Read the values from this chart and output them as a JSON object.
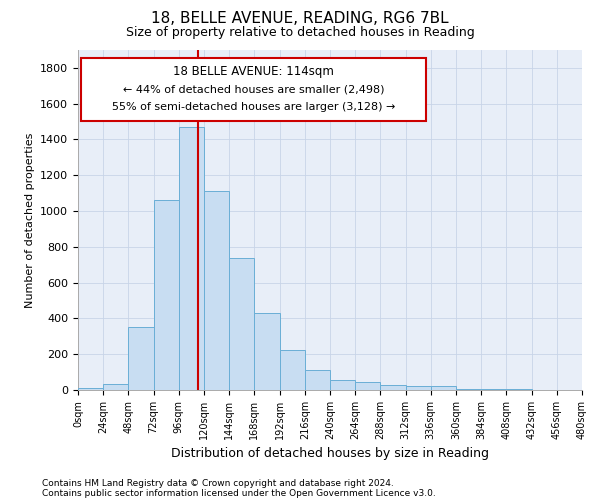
{
  "title1": "18, BELLE AVENUE, READING, RG6 7BL",
  "title2": "Size of property relative to detached houses in Reading",
  "xlabel": "Distribution of detached houses by size in Reading",
  "ylabel": "Number of detached properties",
  "footnote1": "Contains HM Land Registry data © Crown copyright and database right 2024.",
  "footnote2": "Contains public sector information licensed under the Open Government Licence v3.0.",
  "bin_edges": [
    0,
    24,
    48,
    72,
    96,
    120,
    144,
    168,
    192,
    216,
    240,
    264,
    288,
    312,
    336,
    360,
    384,
    408,
    432,
    456,
    480
  ],
  "bar_heights": [
    10,
    35,
    350,
    1060,
    1470,
    1110,
    740,
    430,
    225,
    110,
    55,
    45,
    30,
    20,
    20,
    5,
    5,
    3,
    2,
    1
  ],
  "bar_color": "#c8ddf2",
  "bar_edge_color": "#6aaed6",
  "property_size": 114,
  "vertical_line_color": "#cc0000",
  "ylim_max": 1900,
  "yticks": [
    0,
    200,
    400,
    600,
    800,
    1000,
    1200,
    1400,
    1600,
    1800
  ],
  "annotation_title": "18 BELLE AVENUE: 114sqm",
  "annotation_line1": "← 44% of detached houses are smaller (2,498)",
  "annotation_line2": "55% of semi-detached houses are larger (3,128) →",
  "annotation_box_edgecolor": "#cc0000",
  "annotation_box_facecolor": "#ffffff",
  "grid_color": "#c8d4e8",
  "bg_color": "#e8eef8",
  "title1_fontsize": 11,
  "title2_fontsize": 9,
  "xlabel_fontsize": 9,
  "ylabel_fontsize": 8,
  "xtick_fontsize": 7,
  "ytick_fontsize": 8,
  "footnote_fontsize": 6.5
}
